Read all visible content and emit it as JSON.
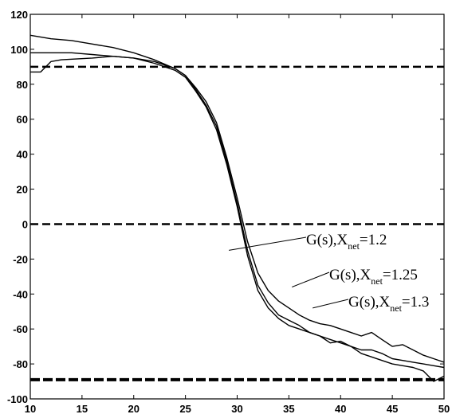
{
  "chart_data": {
    "type": "line",
    "title": "",
    "xlabel": "",
    "ylabel": "",
    "xlim": [
      10,
      50
    ],
    "ylim": [
      -100,
      120
    ],
    "x_ticks": [
      10,
      15,
      20,
      25,
      30,
      35,
      40,
      45,
      50
    ],
    "y_ticks": [
      -100,
      -80,
      -60,
      -40,
      -20,
      0,
      20,
      40,
      60,
      80,
      100,
      120
    ],
    "grid": false,
    "series": [
      {
        "x": [
          10,
          12,
          14,
          16,
          18,
          20,
          22,
          24,
          25,
          26,
          27,
          28,
          29,
          30,
          31,
          32,
          33,
          34,
          35,
          36,
          37,
          38,
          39,
          40,
          41,
          42,
          43,
          44,
          45,
          46,
          47,
          48,
          49,
          50
        ],
        "y": [
          108,
          106,
          105,
          103,
          101,
          98,
          94,
          89,
          85,
          78,
          70,
          58,
          38,
          15,
          -10,
          -28,
          -38,
          -44,
          -48,
          -52,
          -55,
          -57,
          -58,
          -60,
          -62,
          -64,
          -62,
          -66,
          -70,
          -69,
          -72,
          -75,
          -77,
          -79
        ]
      },
      {
        "x": [
          10,
          12,
          14,
          16,
          18,
          20,
          22,
          24,
          25,
          26,
          27,
          28,
          29,
          30,
          31,
          32,
          33,
          34,
          35,
          36,
          37,
          38,
          39,
          40,
          41,
          42,
          43,
          44,
          45,
          46,
          47,
          48,
          49,
          50
        ],
        "y": [
          98,
          98,
          98,
          97,
          96,
          95,
          93,
          89,
          85,
          77,
          68,
          56,
          36,
          12,
          -15,
          -35,
          -45,
          -52,
          -55,
          -58,
          -62,
          -64,
          -66,
          -68,
          -70,
          -72,
          -72,
          -74,
          -77,
          -78,
          -79,
          -80,
          -81,
          -82
        ]
      },
      {
        "x": [
          10,
          11,
          12,
          13,
          16,
          18,
          20,
          22,
          24,
          25,
          26,
          27,
          28,
          29,
          30,
          31,
          32,
          33,
          34,
          35,
          36,
          37,
          38,
          39,
          40,
          41,
          42,
          43,
          44,
          45,
          46,
          47,
          48,
          49,
          50
        ],
        "y": [
          87,
          87,
          93,
          94,
          95,
          96,
          95,
          92,
          88,
          84,
          76,
          67,
          54,
          34,
          10,
          -18,
          -38,
          -48,
          -54,
          -58,
          -60,
          -62,
          -64,
          -68,
          -67,
          -70,
          -74,
          -76,
          -78,
          -80,
          -81,
          -82,
          -84,
          -90,
          -87
        ]
      }
    ],
    "reference_lines": [
      {
        "y": 90,
        "style": "dashed"
      },
      {
        "y": 0,
        "style": "dashed"
      },
      {
        "y": -89,
        "style": "dashed-bold"
      }
    ],
    "annotations": [
      {
        "prefix": "G(s),X",
        "sub": "net",
        "suffix": "=1.2",
        "at_x": 29.2,
        "at_y": -15
      },
      {
        "prefix": "G(s),X",
        "sub": "net",
        "suffix": "=1.25",
        "at_x": 35.3,
        "at_y": -36
      },
      {
        "prefix": "G(s),X",
        "sub": "net",
        "suffix": "=1.3",
        "at_x": 37.3,
        "at_y": -48
      }
    ],
    "colors": {
      "series": "#000000",
      "axis": "#000000",
      "reference": "#000000"
    }
  }
}
